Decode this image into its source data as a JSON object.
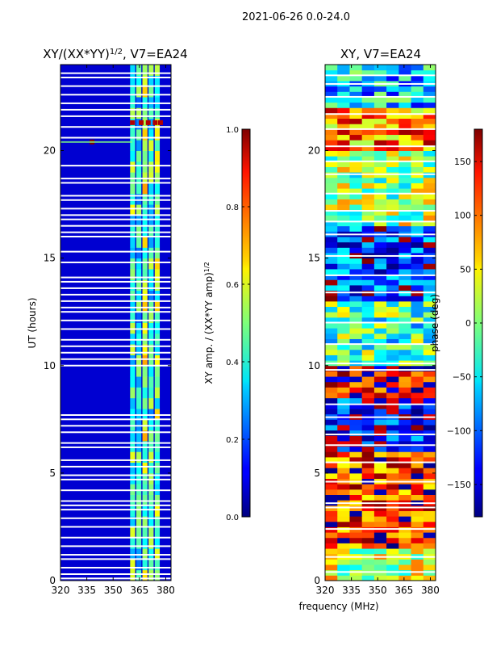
{
  "figure": {
    "suptitle": "2021-06-26 0.0-24.0",
    "shared_xlabel": "frequency (MHz)"
  },
  "chart_data": [
    {
      "type": "heatmap",
      "title": "XY/(XX*YY)^1/2, V7=EA24",
      "title_main": "XY/(XX*YY)",
      "title_sup": "1/2",
      "title_tail": ", V7=EA24",
      "xlabel": "frequency (MHz)",
      "ylabel": "UT (hours)",
      "xlim": [
        320,
        383
      ],
      "ylim": [
        0,
        24
      ],
      "xticks": [
        320,
        335,
        350,
        365,
        380
      ],
      "yticks": [
        0,
        5,
        10,
        15,
        20
      ],
      "colorscale": "jet",
      "colorbar": {
        "label": "XY amp. / (XX*YY amp)^1/2",
        "label_main": "XY amp. / (XX*YY amp)",
        "label_sup": "1/2",
        "vmin": 0.0,
        "vmax": 1.0,
        "ticks": [
          0.0,
          0.2,
          0.4,
          0.6,
          0.8,
          1.0
        ],
        "tick_labels": [
          "0.0",
          "0.2",
          "0.4",
          "0.6",
          "0.8",
          "1.0"
        ]
      },
      "background_value": 0.08,
      "rfi_band_mhz": [
        360,
        378
      ],
      "rfi_columns": [
        {
          "freq": 361.5,
          "value": 0.45
        },
        {
          "freq": 365.0,
          "value": 0.38
        },
        {
          "freq": 368.5,
          "value": 0.55
        },
        {
          "freq": 372.0,
          "value": 0.42
        },
        {
          "freq": 375.5,
          "value": 0.5
        }
      ],
      "hot_spots": [
        {
          "freq": 338,
          "time": 20.4,
          "value": 1.0
        },
        {
          "freq": 361,
          "time": 21.3,
          "value": 0.95
        },
        {
          "freq": 366,
          "time": 21.3,
          "value": 0.95
        },
        {
          "freq": 370,
          "time": 21.3,
          "value": 0.95
        },
        {
          "freq": 374,
          "time": 21.3,
          "value": 0.95
        },
        {
          "freq": 377,
          "time": 21.3,
          "value": 0.95
        }
      ],
      "flagged_times": [
        0.1,
        0.3,
        0.6,
        1.0,
        1.2,
        1.6,
        2.0,
        2.5,
        2.9,
        3.3,
        3.5,
        3.7,
        4.2,
        4.7,
        4.9,
        5.3,
        5.6,
        6.2,
        6.4,
        6.9,
        7.2,
        7.5,
        7.7,
        10.0,
        10.3,
        10.6,
        10.9,
        11.2,
        11.7,
        12.1,
        12.5,
        12.7,
        13.0,
        13.3,
        13.6,
        13.9,
        14.1,
        14.8,
        15.3,
        16.0,
        16.2,
        16.5,
        16.8,
        17.0,
        17.3,
        17.7,
        17.9,
        18.5,
        18.7,
        19.3,
        20.6,
        21.1,
        21.6,
        21.9,
        22.2,
        22.6,
        23.0,
        23.4,
        23.6
      ]
    },
    {
      "type": "heatmap",
      "title": "XY, V7=EA24",
      "xlabel": "frequency (MHz)",
      "ylabel": "",
      "xlim": [
        320,
        383
      ],
      "ylim": [
        0,
        24
      ],
      "xticks": [
        320,
        335,
        350,
        365,
        380
      ],
      "yticks": [
        0,
        5,
        10,
        15,
        20
      ],
      "colorscale": "jet",
      "colorbar": {
        "label": "phase (deg)",
        "vmin": -180,
        "vmax": 180,
        "ticks": [
          -150,
          -100,
          -50,
          0,
          50,
          100,
          150
        ],
        "tick_labels": [
          "−150",
          "−100",
          "−50",
          "0",
          "50",
          "100",
          "150"
        ]
      },
      "phase_bands": [
        {
          "from": 0,
          "to": 1.5,
          "phase": 30
        },
        {
          "from": 1.5,
          "to": 6.0,
          "phase": 120
        },
        {
          "from": 6.0,
          "to": 8.5,
          "phase": -140
        },
        {
          "from": 8.5,
          "to": 10.0,
          "phase": 150
        },
        {
          "from": 10.0,
          "to": 13.0,
          "phase": -20
        },
        {
          "from": 13.0,
          "to": 16.5,
          "phase": -120
        },
        {
          "from": 16.5,
          "to": 20.0,
          "phase": 10
        },
        {
          "from": 20.0,
          "to": 22.0,
          "phase": 90
        },
        {
          "from": 22.0,
          "to": 24.0,
          "phase": -60
        }
      ],
      "flagged_times": [
        0.4,
        1.1,
        2.4,
        3.4,
        3.6,
        4.6,
        5.5,
        6.3,
        6.8,
        7.6,
        8.2,
        9.8,
        10.1,
        11.0,
        12.0,
        13.4,
        14.2,
        15.1,
        16.1,
        16.7,
        17.2,
        18.0,
        18.9,
        19.5,
        20.2,
        21.0,
        21.7,
        22.5,
        23.1,
        23.5
      ]
    }
  ]
}
